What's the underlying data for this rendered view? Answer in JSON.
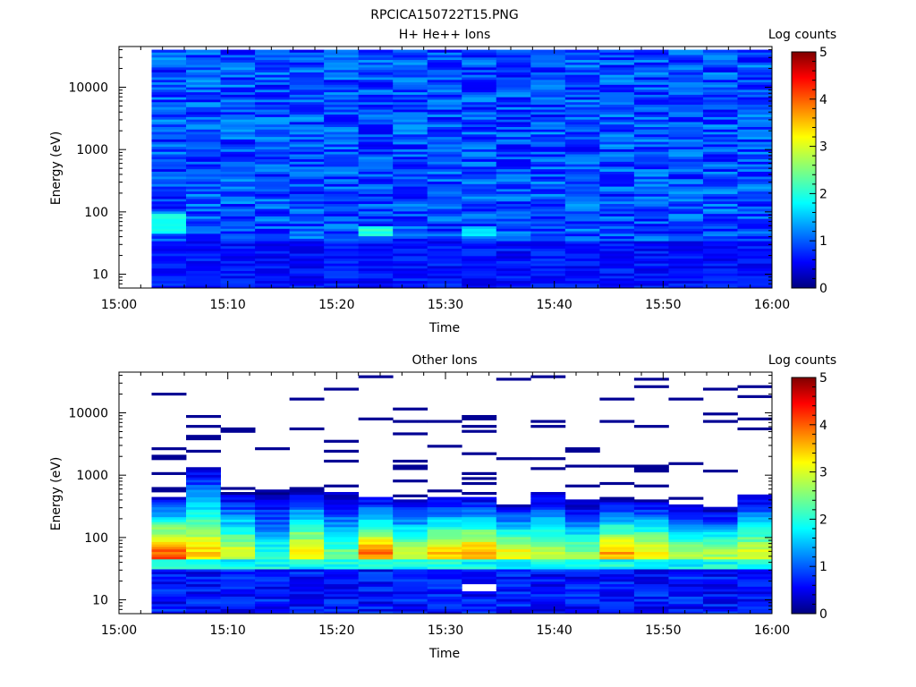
{
  "figure_title": "RPCICA150722T15.PNG",
  "chart_data": [
    {
      "type": "heatmap",
      "title": "H+ He++ Ions",
      "xlabel": "Time",
      "ylabel": "Energy (eV)",
      "x_ticks": [
        "15:00",
        "15:10",
        "15:20",
        "15:30",
        "15:40",
        "15:50",
        "16:00"
      ],
      "x_range": [
        "15:00",
        "16:00"
      ],
      "y_scale": "log",
      "y_ticks": [
        "10",
        "100",
        "1000",
        "10000"
      ],
      "y_range": [
        6,
        45000
      ],
      "data_time_range": [
        "15:03",
        "16:00"
      ],
      "data_energy_range": [
        6,
        40000
      ],
      "time_bins": 18,
      "energy_bins": 96,
      "colorbar": {
        "label": "Log counts",
        "range": [
          0,
          5
        ],
        "ticks": [
          "0",
          "1",
          "2",
          "3",
          "4",
          "5"
        ],
        "colormap": "jet"
      },
      "background_log_counts": 1.0,
      "features": [
        {
          "desc": "low-energy enhancement",
          "time_bin": 0,
          "energy_range": [
            45,
            90
          ],
          "log_counts": 2.2
        },
        {
          "desc": "enhancement",
          "time_bin": 6,
          "energy_range": [
            40,
            60
          ],
          "log_counts": 2.3
        },
        {
          "desc": "enhancement",
          "time_bin": 9,
          "energy_range": [
            40,
            60
          ],
          "log_counts": 1.9
        },
        {
          "desc": "dark low-count band",
          "time_bin": "all",
          "energy_range": [
            6,
            35
          ],
          "log_counts": 0.5
        }
      ]
    },
    {
      "type": "heatmap",
      "title": "Other Ions",
      "xlabel": "Time",
      "ylabel": "Energy (eV)",
      "x_ticks": [
        "15:00",
        "15:10",
        "15:20",
        "15:30",
        "15:40",
        "15:50",
        "16:00"
      ],
      "x_range": [
        "15:00",
        "16:00"
      ],
      "y_scale": "log",
      "y_ticks": [
        "10",
        "100",
        "1000",
        "10000"
      ],
      "y_range": [
        6,
        45000
      ],
      "data_time_range": [
        "15:03",
        "16:00"
      ],
      "data_energy_range": [
        6,
        40000
      ],
      "time_bins": 18,
      "energy_bins": 96,
      "colorbar": {
        "label": "Log counts",
        "range": [
          0,
          5
        ],
        "ticks": [
          "0",
          "1",
          "2",
          "3",
          "4",
          "5"
        ],
        "colormap": "jet"
      },
      "peak_energy_eV": 60,
      "peak_log_counts_by_bin": [
        4.2,
        3.6,
        3.2,
        2.3,
        3.5,
        2.6,
        4.0,
        3.1,
        3.6,
        3.8,
        3.4,
        3.1,
        2.8,
        3.8,
        3.5,
        3.0,
        3.0,
        3.2
      ],
      "upper_extent_eV_by_bin": [
        450,
        1400,
        550,
        600,
        600,
        550,
        450,
        400,
        450,
        450,
        350,
        550,
        400,
        400,
        400,
        350,
        300,
        500
      ],
      "high_energy_sporadic_counts": "sparse single-count lines above 1000 eV",
      "white_gap": {
        "time_bin": 9,
        "energy_range": [
          14,
          18
        ]
      }
    }
  ]
}
